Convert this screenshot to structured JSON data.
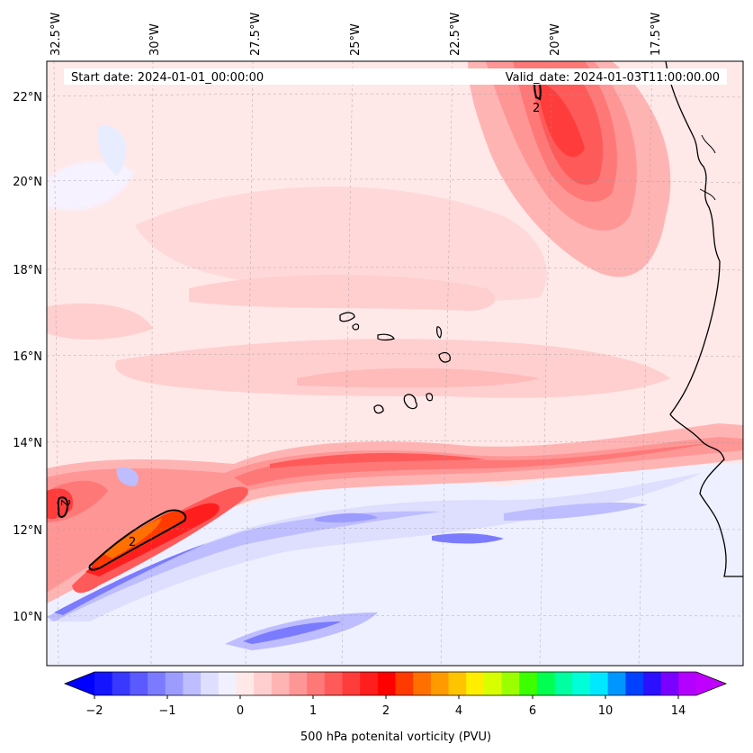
{
  "header": {
    "start_date": "Start date: 2024-01-01_00:00:00",
    "valid_date": "Valid_date: 2024-01-03T11:00:00.00"
  },
  "axes": {
    "lon_labels": [
      "32.5°W",
      "30°W",
      "27.5°W",
      "25°W",
      "22.5°W",
      "20°W",
      "17.5°W"
    ],
    "lat_labels": [
      "22°N",
      "20°N",
      "18°N",
      "16°N",
      "14°N",
      "12°N",
      "10°N"
    ]
  },
  "contour_labels": [
    "2",
    "2",
    "2"
  ],
  "colorbar": {
    "tick_labels": [
      "−2",
      "−1",
      "0",
      "1",
      "2",
      "4",
      "6",
      "10",
      "14"
    ],
    "title": "500 hPa potenital vorticity (PVU)",
    "colors": [
      "#1414ff",
      "#3838ff",
      "#5a5aff",
      "#7b7bff",
      "#9c9cff",
      "#bdbdff",
      "#dedeff",
      "#f0f0ff",
      "#ffe8e8",
      "#ffcfcf",
      "#ffb4b4",
      "#ff9696",
      "#ff7878",
      "#ff5a5a",
      "#ff3c3c",
      "#ff1e1e",
      "#ff0000",
      "#ff3a00",
      "#ff7000",
      "#ff9a00",
      "#ffc400",
      "#ffee00",
      "#d8ff00",
      "#9cff00",
      "#3cff00",
      "#00ff50",
      "#00ffa0",
      "#00ffd8",
      "#00e8ff",
      "#0096ff",
      "#0040ff",
      "#2a10ff",
      "#7a00ff",
      "#b400ff"
    ],
    "underflow_color": "#0000ff",
    "overflow_color": "#c000ff"
  },
  "colors": {
    "background_field": "#ffe8e8",
    "coastline": "#000000"
  }
}
